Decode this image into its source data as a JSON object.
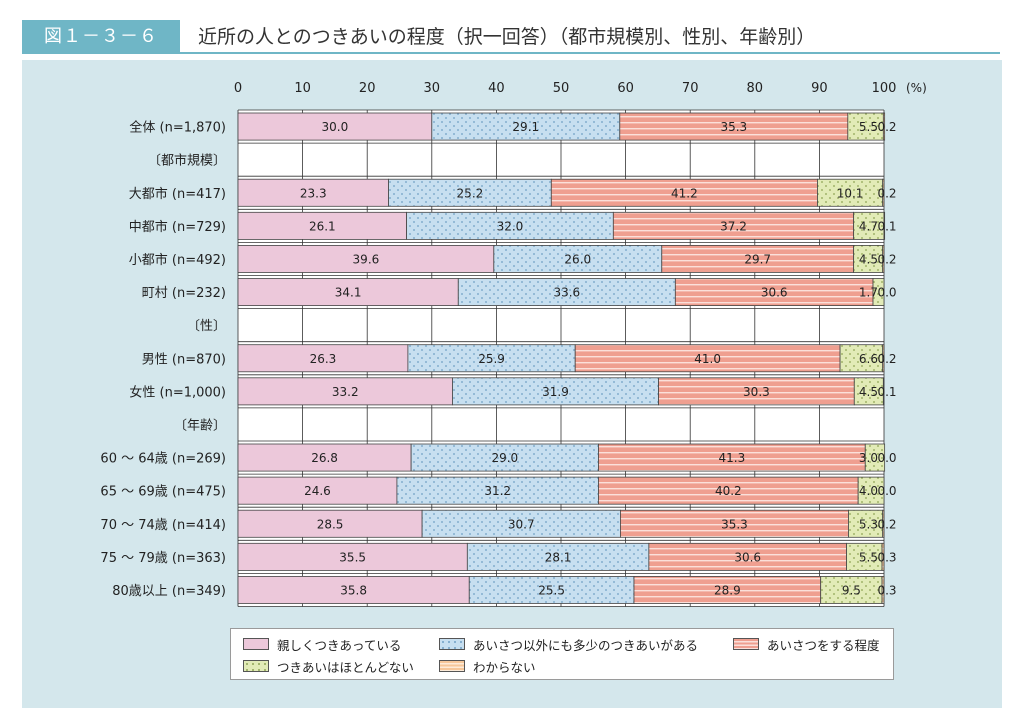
{
  "header": {
    "figure_number": "図１－３－６",
    "title": "近所の人とのつきあいの程度（択一回答）（都市規模別、性別、年齢別）"
  },
  "colors": {
    "panel_bg": "#d4e7ec",
    "accent": "#6fb6c6",
    "series": [
      "#ecc8da",
      "#c7dff0",
      "#ef9f90",
      "#e2ebb7",
      "#f6c79a"
    ]
  },
  "chart_data": {
    "type": "bar",
    "orientation": "horizontal",
    "stacked": true,
    "xlim": [
      0,
      100
    ],
    "x_ticks": [
      "0",
      "10",
      "20",
      "30",
      "40",
      "50",
      "60",
      "70",
      "80",
      "90",
      "100"
    ],
    "x_unit": "(%)",
    "grid": true,
    "legend_position": "bottom",
    "series_names": [
      "親しくつきあっている",
      "あいさつ以外にも多少のつきあいがある",
      "あいさつをする程度",
      "つきあいはほとんどない",
      "わからない"
    ],
    "rows": [
      {
        "label": "全体 (n=1,870)",
        "values": [
          30.0,
          29.1,
          35.3,
          5.5,
          0.2
        ],
        "text": [
          "30.0",
          "29.1",
          "35.3",
          "5.5",
          "0.2"
        ]
      },
      {
        "label": "〔都市規模〕",
        "group_header": true
      },
      {
        "label": "大都市 (n=417)",
        "values": [
          23.3,
          25.2,
          41.2,
          10.1,
          0.2
        ],
        "text": [
          "23.3",
          "25.2",
          "41.2",
          "10.1",
          "0.2"
        ]
      },
      {
        "label": "中都市 (n=729)",
        "values": [
          26.1,
          32.0,
          37.2,
          4.7,
          0.1
        ],
        "text": [
          "26.1",
          "32.0",
          "37.2",
          "4.7",
          "0.1"
        ]
      },
      {
        "label": "小都市 (n=492)",
        "values": [
          39.6,
          26.0,
          29.7,
          4.5,
          0.2
        ],
        "text": [
          "39.6",
          "26.0",
          "29.7",
          "4.5",
          "0.2"
        ]
      },
      {
        "label": "町村 (n=232)",
        "values": [
          34.1,
          33.6,
          30.6,
          1.7,
          0.0
        ],
        "text": [
          "34.1",
          "33.6",
          "30.6",
          "1.7",
          "0.0"
        ]
      },
      {
        "label": "〔性〕",
        "group_header": true
      },
      {
        "label": "男性 (n=870)",
        "values": [
          26.3,
          25.9,
          41.0,
          6.6,
          0.2
        ],
        "text": [
          "26.3",
          "25.9",
          "41.0",
          "6.6",
          "0.2"
        ]
      },
      {
        "label": "女性 (n=1,000)",
        "values": [
          33.2,
          31.9,
          30.3,
          4.5,
          0.1
        ],
        "text": [
          "33.2",
          "31.9",
          "30.3",
          "4.5",
          "0.1"
        ]
      },
      {
        "label": "〔年齢〕",
        "group_header": true
      },
      {
        "label": "60 ～ 64歳 (n=269)",
        "values": [
          26.8,
          29.0,
          41.3,
          3.0,
          0.0
        ],
        "text": [
          "26.8",
          "29.0",
          "41.3",
          "3.0",
          "0.0"
        ]
      },
      {
        "label": "65 ～ 69歳 (n=475)",
        "values": [
          24.6,
          31.2,
          40.2,
          4.0,
          0.0
        ],
        "text": [
          "24.6",
          "31.2",
          "40.2",
          "4.0",
          "0.0"
        ]
      },
      {
        "label": "70 ～ 74歳 (n=414)",
        "values": [
          28.5,
          30.7,
          35.3,
          5.3,
          0.2
        ],
        "text": [
          "28.5",
          "30.7",
          "35.3",
          "5.3",
          "0.2"
        ]
      },
      {
        "label": "75 ～ 79歳 (n=363)",
        "values": [
          35.5,
          28.1,
          30.6,
          5.5,
          0.3
        ],
        "text": [
          "35.5",
          "28.1",
          "30.6",
          "5.5",
          "0.3"
        ]
      },
      {
        "label": "80歳以上 (n=349)",
        "values": [
          35.8,
          25.5,
          28.9,
          9.5,
          0.3
        ],
        "text": [
          "35.8",
          "25.5",
          "28.9",
          "9.5",
          "0.3"
        ]
      }
    ]
  }
}
